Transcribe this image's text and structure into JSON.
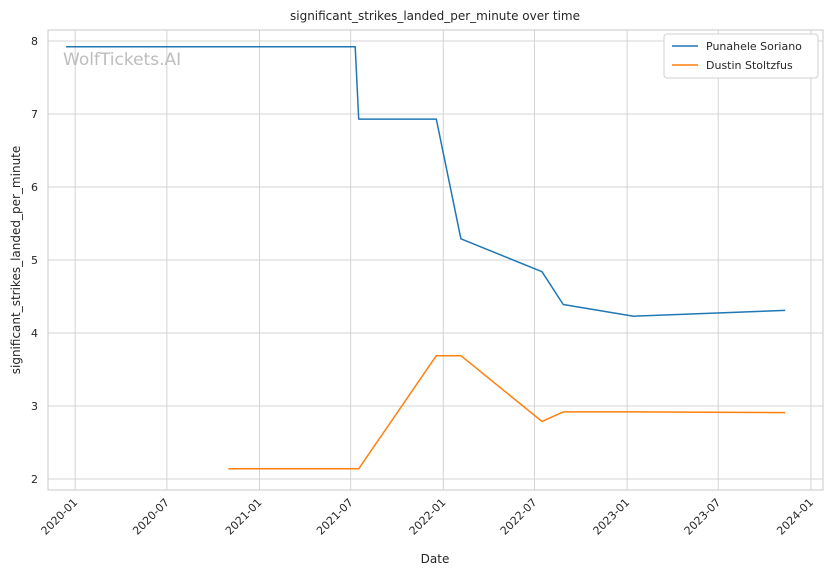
{
  "watermark": "WolfTickets.AI",
  "chart_data": {
    "type": "line",
    "title": "significant_strikes_landed_per_minute over time",
    "xlabel": "Date",
    "ylabel": "significant_strikes_landed_per_minute",
    "x_ticks": [
      "2020-01",
      "2020-07",
      "2021-01",
      "2021-07",
      "2022-01",
      "2022-07",
      "2023-01",
      "2023-07",
      "2024-01"
    ],
    "y_ticks": [
      2,
      3,
      4,
      5,
      6,
      7,
      8
    ],
    "xlim": [
      "2019-11-08",
      "2024-01-25"
    ],
    "ylim": [
      1.85,
      8.15
    ],
    "grid": true,
    "legend_position": "top-right",
    "colors": {
      "series1": "#1f77b4",
      "series2": "#ff7f0e",
      "grid": "#d4d4d4",
      "axes": "#c8c8c8"
    },
    "series": [
      {
        "name": "Punahele Soriano",
        "x": [
          "2019-12-14",
          "2021-07-10",
          "2021-07-17",
          "2021-12-18",
          "2022-02-05",
          "2022-07-16",
          "2022-08-27",
          "2023-01-14",
          "2023-11-11"
        ],
        "y": [
          7.92,
          7.92,
          6.93,
          6.93,
          5.29,
          4.84,
          4.39,
          4.23,
          4.31
        ]
      },
      {
        "name": "Dustin Stoltzfus",
        "x": [
          "2020-10-31",
          "2021-07-17",
          "2021-12-18",
          "2022-02-05",
          "2022-07-16",
          "2022-08-27",
          "2023-01-14",
          "2023-11-11"
        ],
        "y": [
          2.14,
          2.14,
          3.69,
          3.69,
          2.79,
          2.92,
          2.92,
          2.91
        ]
      }
    ]
  }
}
